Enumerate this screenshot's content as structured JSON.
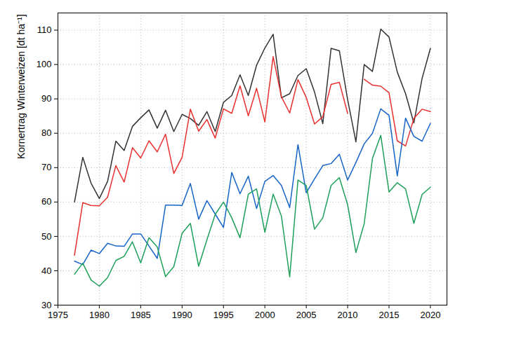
{
  "chart_data": {
    "type": "line",
    "ylabel": "Kornertrag Winterweizen [dt ha⁻¹]",
    "x": [
      1977,
      1978,
      1979,
      1980,
      1981,
      1982,
      1983,
      1984,
      1985,
      1986,
      1987,
      1988,
      1989,
      1990,
      1991,
      1992,
      1993,
      1994,
      1995,
      1996,
      1997,
      1998,
      1999,
      2000,
      2001,
      2002,
      2003,
      2004,
      2005,
      2006,
      2007,
      2008,
      2009,
      2010,
      2011,
      2012,
      2013,
      2014,
      2015,
      2016,
      2017,
      2018,
      2019,
      2020
    ],
    "xlim": [
      1975,
      2022
    ],
    "xticks": [
      1975,
      1980,
      1985,
      1990,
      1995,
      2000,
      2005,
      2010,
      2015,
      2020
    ],
    "ylim": [
      30,
      115
    ],
    "yticks": [
      30,
      40,
      50,
      60,
      70,
      80,
      90,
      100,
      110
    ],
    "grid": true,
    "series": [
      {
        "color": "#333333",
        "values": [
          60,
          73,
          65.5,
          61,
          66,
          77.7,
          75,
          82,
          84.5,
          86.8,
          81.5,
          86.7,
          80.5,
          85.5,
          84.3,
          82.3,
          86.3,
          80.5,
          89,
          91,
          97,
          91,
          99.8,
          104.8,
          108.8,
          90.3,
          91.5,
          96.8,
          98.8,
          92,
          82.8,
          104.7,
          104,
          89.8,
          77.5,
          100,
          98,
          110.3,
          108,
          97.8,
          91.5,
          83,
          96,
          104.7
        ]
      },
      {
        "color": "#e8312f",
        "values": [
          44.5,
          59.8,
          59,
          58.9,
          61.4,
          70.6,
          65.8,
          75.8,
          72.8,
          77.8,
          74.6,
          79.7,
          68.3,
          73,
          87,
          80.6,
          84,
          78.6,
          87.1,
          85.8,
          93.8,
          85.1,
          93.1,
          83.3,
          102.3,
          90.6,
          85.9,
          95.6,
          90.4,
          82.7,
          84.8,
          94.2,
          94.8,
          85.8,
          null,
          95.7,
          94,
          93.7,
          91.8,
          77.8,
          76.3,
          84.3,
          87,
          86.3
        ]
      },
      {
        "color": "#1764c8",
        "values": [
          42.8,
          41.8,
          46,
          45,
          48,
          47.2,
          47.1,
          50.7,
          50.7,
          47.2,
          43.6,
          59.1,
          59.1,
          59,
          65.4,
          55,
          60.4,
          56.5,
          52.6,
          68.6,
          62.4,
          67.5,
          58.1,
          66,
          67.7,
          64.8,
          58.4,
          76.7,
          62.7,
          66.7,
          70.6,
          71.2,
          73.9,
          66.4,
          71.5,
          76.9,
          80,
          87.1,
          85.2,
          67.6,
          84.4,
          79.1,
          77.7,
          82.9
        ]
      },
      {
        "color": "#1ea05a",
        "values": [
          39,
          42.2,
          37.3,
          35.5,
          38,
          43,
          44.2,
          48.4,
          42.3,
          49.6,
          46.9,
          38.3,
          41.2,
          50.9,
          53.8,
          41.3,
          49,
          56.4,
          60,
          55.4,
          49.6,
          62.3,
          63.8,
          51.2,
          62.3,
          55.9,
          38.2,
          66.4,
          64.8,
          52.1,
          55.4,
          64.8,
          67.1,
          59.2,
          45.3,
          53.7,
          72.7,
          79.4,
          62.9,
          65.6,
          63.8,
          53.8,
          62.2,
          64.3
        ]
      }
    ]
  }
}
